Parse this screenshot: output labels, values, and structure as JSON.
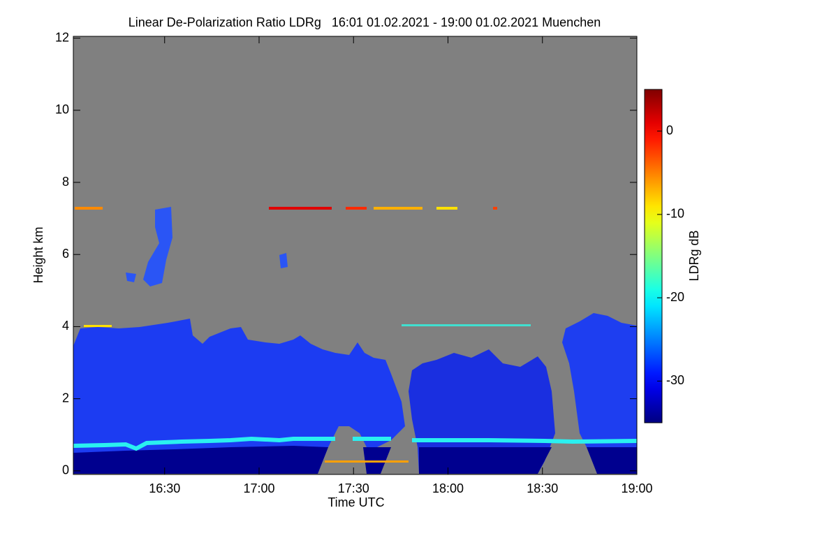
{
  "chart_data": {
    "type": "heatmap",
    "title": "Linear De-Polarization Ratio LDRg   16:01 01.02.2021 - 19:00 01.02.2021 Muenchen",
    "x_label": "Time UTC",
    "y_label": "Height km",
    "xlim": [
      16.0167,
      19.0
    ],
    "xticks": [
      {
        "value": 16.5,
        "label": "16:30"
      },
      {
        "value": 17.0,
        "label": "17:00"
      },
      {
        "value": 17.5,
        "label": "17:30"
      },
      {
        "value": 18.0,
        "label": "18:00"
      },
      {
        "value": 18.5,
        "label": "18:30"
      },
      {
        "value": 19.0,
        "label": "19:00"
      }
    ],
    "ylim": [
      -0.1,
      12.05
    ],
    "yticks": [
      0,
      2,
      4,
      6,
      8,
      10,
      12
    ],
    "colorbar": {
      "label": "LDRg dB",
      "lim": [
        -35,
        5
      ],
      "ticks": [
        0,
        -10,
        -20,
        -30
      ],
      "colormap": "jet"
    },
    "background_color": "#808080"
  }
}
